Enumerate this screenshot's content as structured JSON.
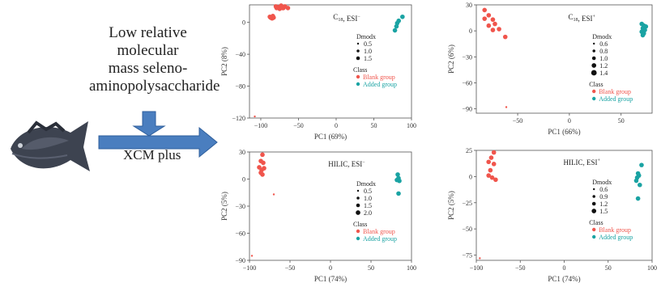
{
  "workflow": {
    "compound_lines": [
      "Low relative",
      "molecular",
      "mass seleno-",
      "aminopolysaccharide"
    ],
    "tool": "XCM plus"
  },
  "colors": {
    "blank": "#f0554c",
    "added": "#1aa3a3",
    "axis": "#555555"
  },
  "chart_data": [
    {
      "type": "scatter",
      "title": "C18, ESI−",
      "title_main": "C",
      "title_sub": "18",
      "title_rest": ", ESI",
      "title_sup": "−",
      "xlabel": "PC1 (69%)",
      "ylabel": "PC2 (8%)",
      "xlim": [
        -115,
        100
      ],
      "ylim": [
        -120,
        22
      ],
      "xticks": [
        -100,
        -50,
        0,
        50,
        100
      ],
      "yticks": [
        0,
        -40,
        -80,
        -120
      ],
      "dmodx_title": "Dmodx",
      "dmodx_values": [
        "0.5",
        "1.0",
        "1.5"
      ],
      "class_title": "Class",
      "series": [
        {
          "name": "Blank group",
          "color": "#f0554c",
          "points": [
            [
              -80,
              20
            ],
            [
              -77,
              19
            ],
            [
              -74,
              20
            ],
            [
              -72,
              19
            ],
            [
              -70,
              18
            ],
            [
              -75,
              17
            ],
            [
              -68,
              20
            ],
            [
              -64,
              18
            ],
            [
              -79,
              18
            ],
            [
              -73,
              21
            ],
            [
              -71,
              18
            ],
            [
              -87,
              6
            ],
            [
              -85,
              5
            ],
            [
              -83,
              6
            ],
            [
              -88,
              7
            ],
            [
              -84,
              8
            ],
            [
              -108,
              -118
            ]
          ]
        },
        {
          "name": "Added group",
          "color": "#1aa3a3",
          "points": [
            [
              78,
              -10
            ],
            [
              80,
              -5
            ],
            [
              81,
              -1
            ],
            [
              83,
              2
            ],
            [
              88,
              7
            ]
          ]
        }
      ]
    },
    {
      "type": "scatter",
      "title": "C18, ESI+",
      "title_main": "C",
      "title_sub": "18",
      "title_rest": ", ESI",
      "title_sup": "+",
      "xlabel": "PC1 (66%)",
      "ylabel": "PC2 (6%)",
      "xlim": [
        -90,
        80
      ],
      "ylim": [
        -95,
        30
      ],
      "xticks": [
        -50,
        0,
        50
      ],
      "yticks": [
        30,
        0,
        -30,
        -60,
        -90
      ],
      "dmodx_title": "Dmodx",
      "dmodx_values": [
        "0.6",
        "0.8",
        "1.0",
        "1.2",
        "1.4"
      ],
      "class_title": "Class",
      "series": [
        {
          "name": "Blank group",
          "color": "#f0554c",
          "points": [
            [
              -82,
              24
            ],
            [
              -78,
              18
            ],
            [
              -74,
              13
            ],
            [
              -82,
              14
            ],
            [
              -78,
              6
            ],
            [
              -72,
              8
            ],
            [
              -68,
              2
            ],
            [
              -74,
              1
            ],
            [
              -62,
              -7
            ],
            [
              -61,
              -88
            ]
          ]
        },
        {
          "name": "Added group",
          "color": "#1aa3a3",
          "points": [
            [
              70,
              8
            ],
            [
              72,
              6
            ],
            [
              71,
              3
            ],
            [
              73,
              1
            ],
            [
              70,
              -1
            ],
            [
              72,
              -3
            ],
            [
              74,
              5
            ],
            [
              71,
              -5
            ]
          ]
        }
      ]
    },
    {
      "type": "scatter",
      "title": "HILIC, ESI−",
      "title_main": "HILIC",
      "title_sub": "",
      "title_rest": ", ESI",
      "title_sup": "−",
      "xlabel": "PC1 (74%)",
      "ylabel": "PC2 (5%)",
      "xlim": [
        -100,
        100
      ],
      "ylim": [
        -90,
        30
      ],
      "xticks": [
        -100,
        -50,
        0,
        50,
        100
      ],
      "yticks": [
        30,
        0,
        -30,
        -60,
        -90
      ],
      "dmodx_title": "Dmodx",
      "dmodx_values": [
        "0.5",
        "1.0",
        "1.5",
        "2.0"
      ],
      "class_title": "Class",
      "series": [
        {
          "name": "Blank group",
          "color": "#f0554c",
          "points": [
            [
              -84,
              27
            ],
            [
              -86,
              20
            ],
            [
              -83,
              18
            ],
            [
              -88,
              13
            ],
            [
              -85,
              10
            ],
            [
              -82,
              12
            ],
            [
              -86,
              7
            ],
            [
              -84,
              5
            ],
            [
              -70,
              -17
            ],
            [
              -97,
              -85
            ]
          ]
        },
        {
          "name": "Added group",
          "color": "#1aa3a3",
          "points": [
            [
              83,
              5
            ],
            [
              84,
              1
            ],
            [
              82,
              -1
            ],
            [
              85,
              -2
            ],
            [
              84,
              -16
            ]
          ]
        }
      ]
    },
    {
      "type": "scatter",
      "title": "HILIC, ESI+",
      "title_main": "HILIC",
      "title_sub": "",
      "title_rest": ", ESI",
      "title_sup": "+",
      "xlabel": "PC1 (74%)",
      "ylabel": "PC2 (5%)",
      "xlim": [
        -100,
        100
      ],
      "ylim": [
        -80,
        25
      ],
      "xticks": [
        -100,
        -50,
        0,
        50,
        100
      ],
      "yticks": [
        25,
        0,
        -25,
        -50,
        -75
      ],
      "dmodx_title": "Dmodx",
      "dmodx_values": [
        "0.6",
        "0.9",
        "1.2",
        "1.5"
      ],
      "class_title": "Class",
      "series": [
        {
          "name": "Blank group",
          "color": "#f0554c",
          "points": [
            [
              -80,
              23
            ],
            [
              -83,
              18
            ],
            [
              -86,
              14
            ],
            [
              -80,
              12
            ],
            [
              -84,
              6
            ],
            [
              -86,
              1
            ],
            [
              -82,
              -1
            ],
            [
              -78,
              -3
            ],
            [
              -96,
              -78
            ]
          ]
        },
        {
          "name": "Added group",
          "color": "#1aa3a3",
          "points": [
            [
              84,
              3
            ],
            [
              85,
              1
            ],
            [
              83,
              -1
            ],
            [
              82,
              -4
            ],
            [
              86,
              -8
            ],
            [
              84,
              -21
            ],
            [
              88,
              11
            ]
          ]
        }
      ]
    }
  ]
}
